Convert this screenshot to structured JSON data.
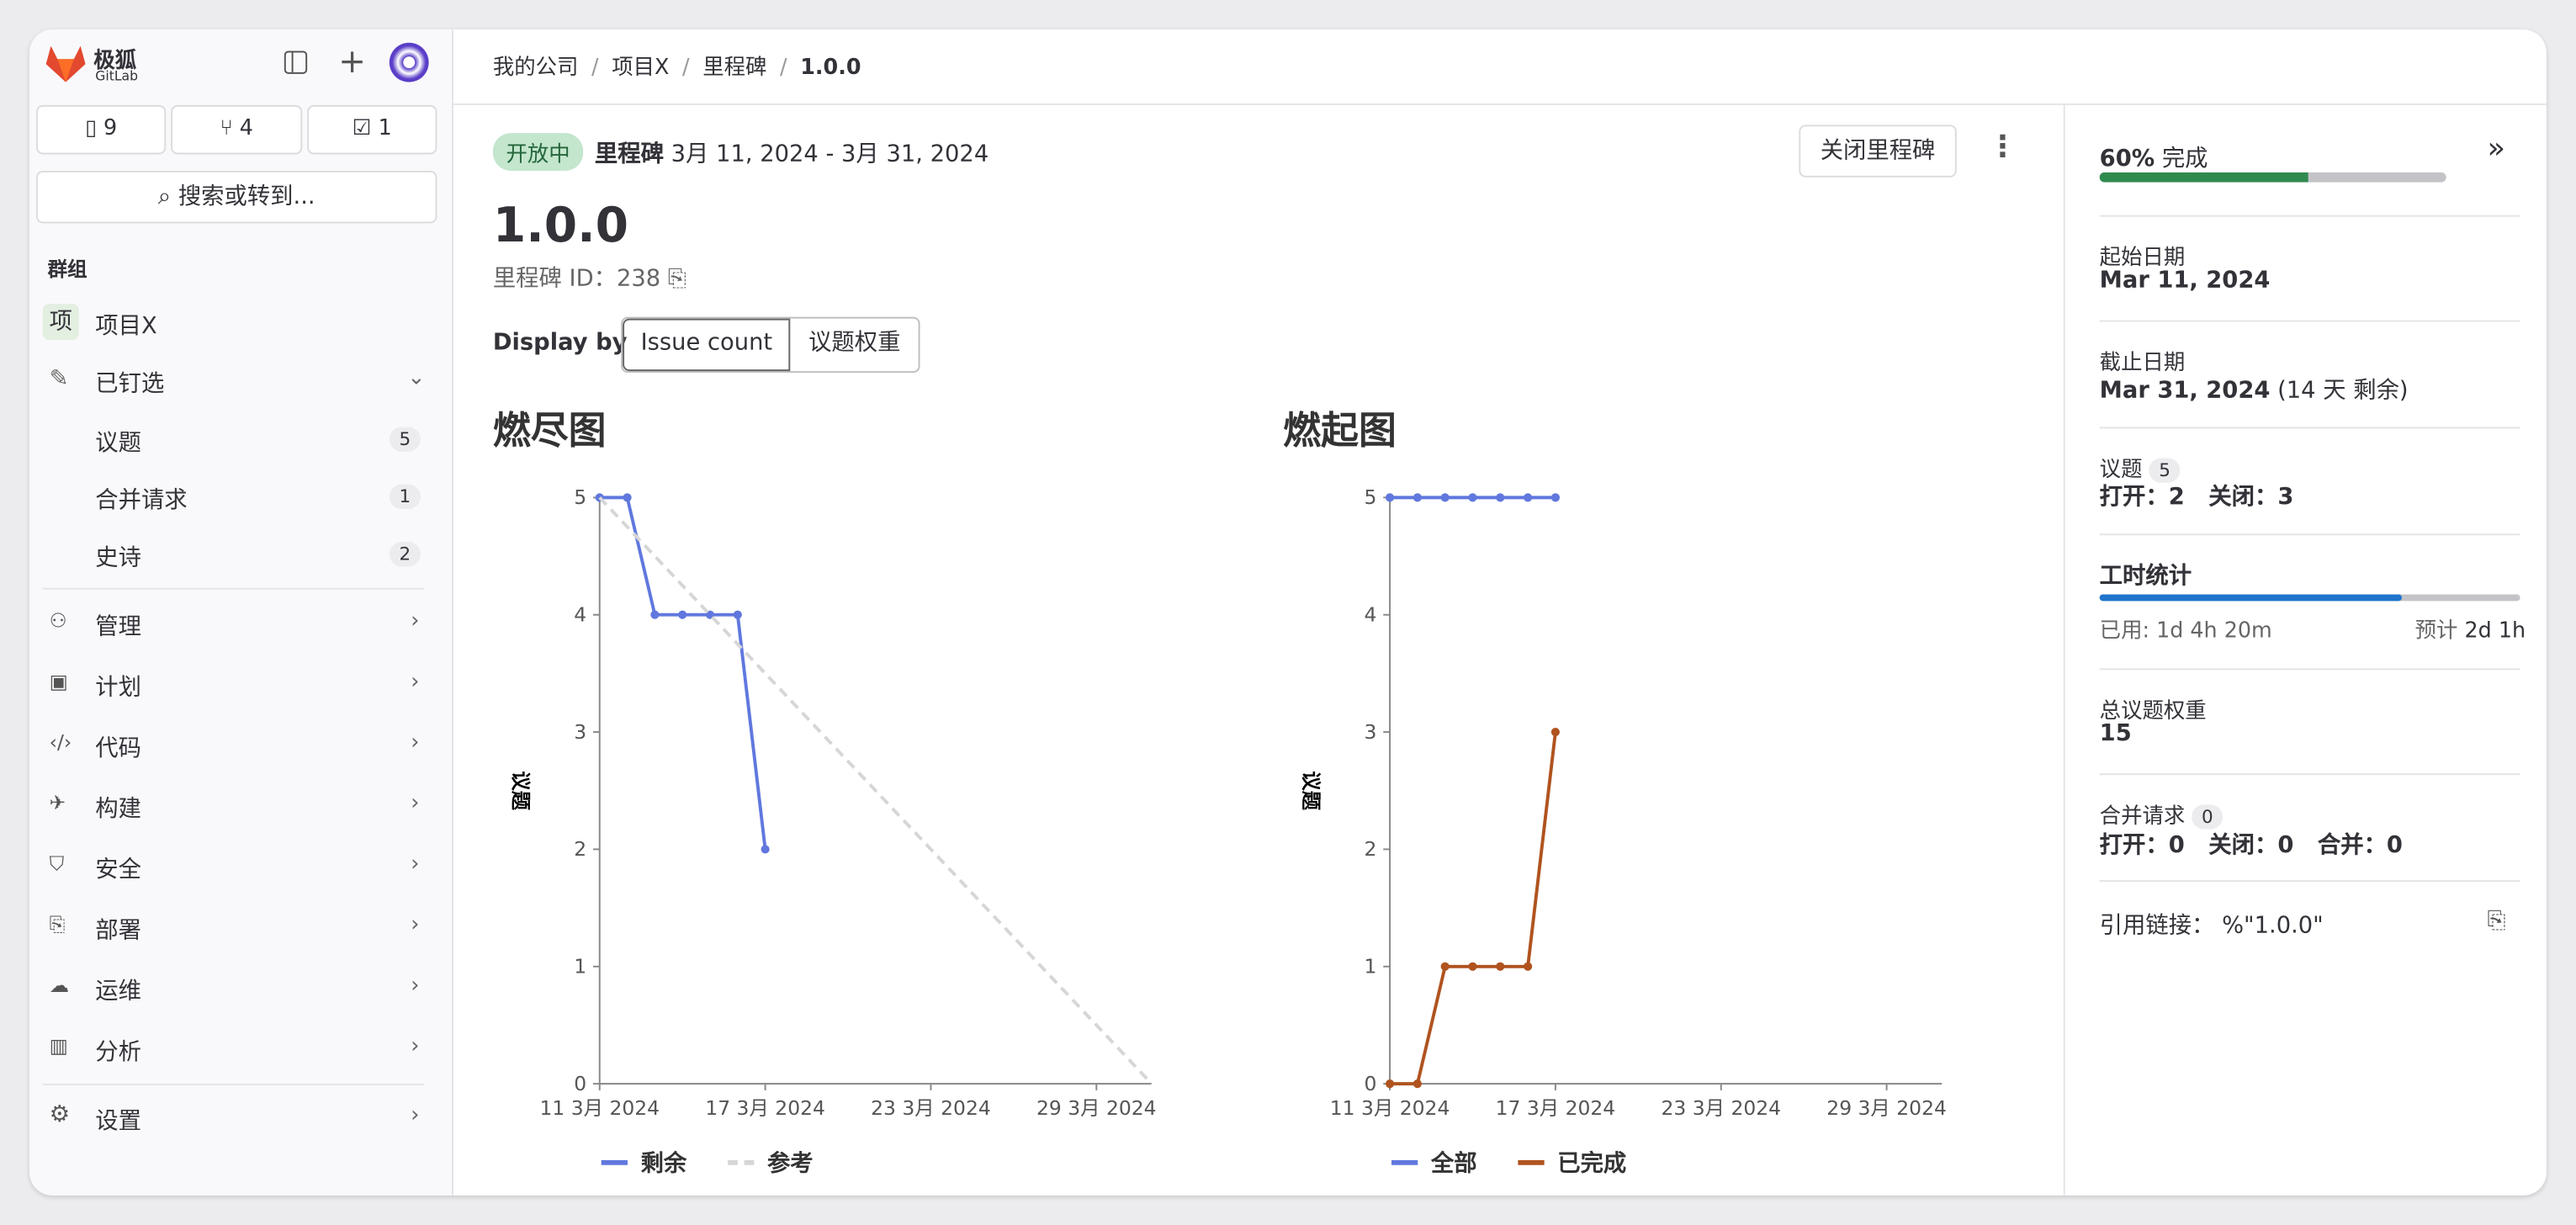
{
  "sidebar": {
    "brand": "极狐",
    "brand_sub": "GitLab",
    "counters": [
      9,
      4,
      1
    ],
    "search": "搜索或转到...",
    "section": "群组",
    "project_icon": "项",
    "project": "项目X",
    "pinned": "已钉选",
    "pinned_items": [
      {
        "label": "议题",
        "count": 5
      },
      {
        "label": "合并请求",
        "count": 1
      },
      {
        "label": "史诗",
        "count": 2
      }
    ],
    "menu": [
      "管理",
      "计划",
      "代码",
      "构建",
      "安全",
      "部署",
      "运维",
      "分析"
    ],
    "settings": "设置"
  },
  "breadcrumb": [
    "我的公司",
    "项目X",
    "里程碑",
    "1.0.0"
  ],
  "header": {
    "status": "开放中",
    "label": "里程碑",
    "dates": "3月 11, 2024 - 3月 31, 2024",
    "close_button": "关闭里程碑",
    "title": "1.0.0",
    "id_label": "里程碑 ID：",
    "id": 238,
    "display_by": "Display by",
    "toggle": [
      "Issue count",
      "议题权重"
    ]
  },
  "chart_data": [
    {
      "type": "line",
      "title": "燃尽图",
      "y_label": "议题",
      "x": [
        "2024-03-11",
        "2024-03-12",
        "2024-03-13",
        "2024-03-14",
        "2024-03-15",
        "2024-03-16",
        "2024-03-17"
      ],
      "xlim": [
        "2024-03-11",
        "2024-03-31"
      ],
      "xticks": [
        {
          "value": "2024-03-11",
          "label": "11 3月 2024"
        },
        {
          "value": "2024-03-17",
          "label": "17 3月 2024"
        },
        {
          "value": "2024-03-23",
          "label": "23 3月 2024"
        },
        {
          "value": "2024-03-29",
          "label": "29 3月 2024"
        }
      ],
      "ylim": [
        0,
        5
      ],
      "yticks": [
        0,
        1,
        2,
        3,
        4,
        5
      ],
      "series": [
        {
          "name": "剩余",
          "color": "#6078de",
          "values": [
            5,
            5,
            4,
            4,
            4,
            4,
            2
          ]
        },
        {
          "name": "参考",
          "color": "#d6d6d6",
          "dashed": true,
          "x": [
            "2024-03-11",
            "2024-03-31"
          ],
          "values": [
            5,
            0
          ]
        }
      ]
    },
    {
      "type": "line",
      "title": "燃起图",
      "y_label": "议题",
      "x": [
        "2024-03-11",
        "2024-03-12",
        "2024-03-13",
        "2024-03-14",
        "2024-03-15",
        "2024-03-16",
        "2024-03-17"
      ],
      "xlim": [
        "2024-03-11",
        "2024-03-31"
      ],
      "xticks": [
        {
          "value": "2024-03-11",
          "label": "11 3月 2024"
        },
        {
          "value": "2024-03-17",
          "label": "17 3月 2024"
        },
        {
          "value": "2024-03-23",
          "label": "23 3月 2024"
        },
        {
          "value": "2024-03-29",
          "label": "29 3月 2024"
        }
      ],
      "ylim": [
        0,
        5
      ],
      "yticks": [
        0,
        1,
        2,
        3,
        4,
        5
      ],
      "series": [
        {
          "name": "全部",
          "color": "#6078de",
          "values": [
            5,
            5,
            5,
            5,
            5,
            5,
            5
          ]
        },
        {
          "name": "已完成",
          "color": "#b0531f",
          "values": [
            0,
            0,
            1,
            1,
            1,
            1,
            3
          ]
        }
      ]
    }
  ],
  "panel": {
    "progress": {
      "value": 60,
      "label": "60%"
    },
    "progress_text": "完成",
    "start_label": "起始日期",
    "start": "Mar 11, 2024",
    "due_label": "截止日期",
    "due": "Mar 31, 2024",
    "due_note": "(14 天 剩余)",
    "issues_label": "议题",
    "issues_count": 5,
    "open_label": "打开：",
    "issues_open": 2,
    "closed_label": "关闭：",
    "issues_closed": 3,
    "time_label": "工时统计",
    "spent": "已用: 1d 4h 20m",
    "estimate_label": "预计",
    "estimate": "2d 1h",
    "weight_label": "总议题权重",
    "weight": 15,
    "mr_label": "合并请求",
    "mr_count": 0,
    "mr_open_label": "打开：",
    "mr_open": 0,
    "mr_closed_label": "关闭：",
    "mr_closed": 0,
    "mr_merged_label": "合并：",
    "mr_merged": 0,
    "ref_label": "引用链接：",
    "ref": "%\"1.0.0\""
  }
}
